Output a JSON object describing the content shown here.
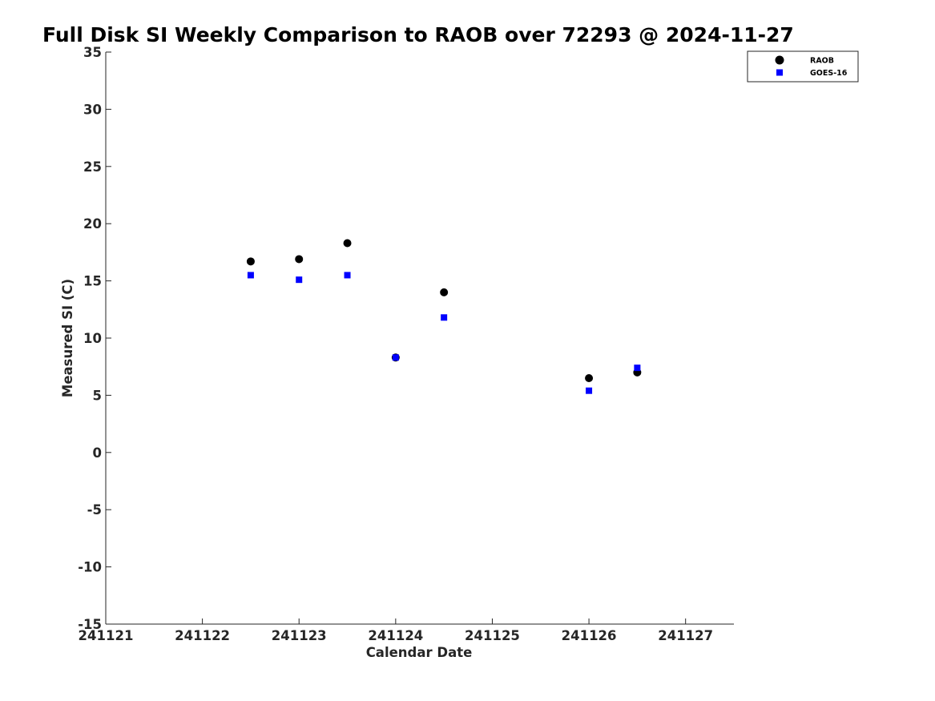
{
  "chart_data": {
    "type": "scatter",
    "title": "Full Disk SI Weekly Comparison to RAOB over 72293 @ 2024-11-27",
    "xlabel": "Calendar Date",
    "ylabel": "Measured SI (C)",
    "xlim": [
      241121,
      241127.5
    ],
    "ylim": [
      -15,
      35
    ],
    "xticks": [
      241121,
      241122,
      241123,
      241124,
      241125,
      241126,
      241127
    ],
    "xtick_labels": [
      "241121",
      "241122",
      "241123",
      "241124",
      "241125",
      "241126",
      "241127"
    ],
    "yticks": [
      -15,
      -10,
      -5,
      0,
      5,
      10,
      15,
      20,
      25,
      30,
      35
    ],
    "ytick_labels": [
      "-15",
      "-10",
      "-5",
      "0",
      "5",
      "10",
      "15",
      "20",
      "25",
      "30",
      "35"
    ],
    "grid": false,
    "legend_position": "top-right",
    "series": [
      {
        "name": "RAOB",
        "marker": "circle",
        "color": "#000000",
        "points": [
          {
            "x": 241122.5,
            "y": 16.7
          },
          {
            "x": 241123.0,
            "y": 16.9
          },
          {
            "x": 241123.5,
            "y": 18.3
          },
          {
            "x": 241124.0,
            "y": 8.3
          },
          {
            "x": 241124.5,
            "y": 14.0
          },
          {
            "x": 241126.0,
            "y": 6.5
          },
          {
            "x": 241126.5,
            "y": 7.0
          }
        ]
      },
      {
        "name": "GOES-16",
        "marker": "square",
        "color": "#0000ff",
        "points": [
          {
            "x": 241122.5,
            "y": 15.5
          },
          {
            "x": 241123.0,
            "y": 15.1
          },
          {
            "x": 241123.5,
            "y": 15.5
          },
          {
            "x": 241124.0,
            "y": 8.3
          },
          {
            "x": 241124.5,
            "y": 11.8
          },
          {
            "x": 241126.0,
            "y": 5.4
          },
          {
            "x": 241126.5,
            "y": 7.4
          }
        ]
      }
    ]
  }
}
